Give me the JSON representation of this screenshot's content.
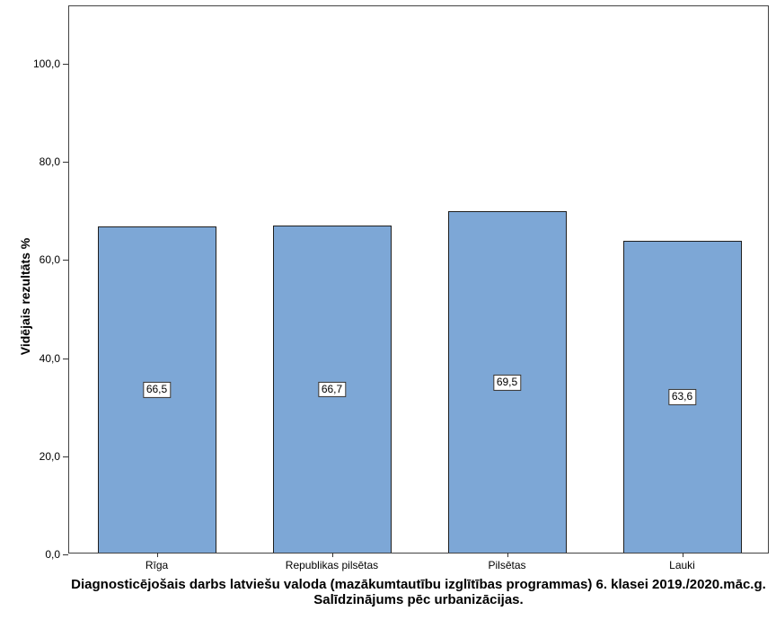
{
  "chart_data": {
    "type": "bar",
    "title": "Diagnosticējošais darbs latviešu valoda (mazākumtautību izglītības programmas) 6. klasei 2019./2020.māc.g.",
    "subtitle": "Salīdzinājums pēc urbanizācijas.",
    "ylabel": "Vidējais rezultāts %",
    "xlabel": "",
    "categories": [
      "Rīga",
      "Republikas pilsētas",
      "Pilsētas",
      "Lauki"
    ],
    "values": [
      66.5,
      66.7,
      69.5,
      63.6
    ],
    "value_labels": [
      "66,5",
      "66,7",
      "69,5",
      "63,6"
    ],
    "ylim": [
      0,
      111.7
    ],
    "yticks": [
      0,
      20,
      40,
      60,
      80,
      100
    ],
    "ytick_labels": [
      "0,0",
      "20,0",
      "40,0",
      "60,0",
      "80,0",
      "100,0"
    ],
    "grid": false,
    "legend": null,
    "bar_fill_color": "#7DA7D6",
    "bar_border_color": "#1f1f1f",
    "axis_color": "#333333"
  }
}
